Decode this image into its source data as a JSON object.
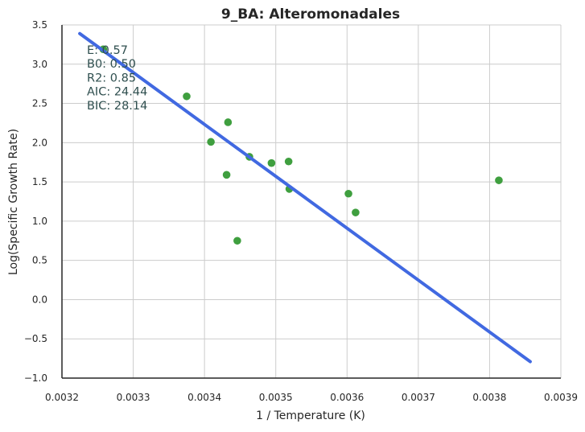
{
  "chart_data": {
    "type": "scatter",
    "title": "9_BA: Alteromonadales",
    "xlabel": "1 / Temperature (K)",
    "ylabel": "Log(Specific Growth Rate)",
    "xlim": [
      0.0032,
      0.0039
    ],
    "ylim": [
      -1.0,
      3.5
    ],
    "x_ticks": [
      "0.0032",
      "0.0033",
      "0.0034",
      "0.0035",
      "0.0036",
      "0.0037",
      "0.0038",
      "0.0039"
    ],
    "y_ticks": [
      "3.5",
      "3.0",
      "2.5",
      "2.0",
      "1.5",
      "1.0",
      "0.5",
      "0.0",
      "−0.5",
      "−1.0"
    ],
    "grid": true,
    "series": [
      {
        "kind": "points",
        "color": "#3f9f3f",
        "points": [
          [
            0.003258,
            3.19
          ],
          [
            0.003375,
            2.59
          ],
          [
            0.003409,
            2.01
          ],
          [
            0.003431,
            1.59
          ],
          [
            0.003433,
            2.26
          ],
          [
            0.003446,
            0.75
          ],
          [
            0.003463,
            1.82
          ],
          [
            0.003494,
            1.74
          ],
          [
            0.003518,
            1.76
          ],
          [
            0.003519,
            1.41
          ],
          [
            0.003602,
            1.35
          ],
          [
            0.003612,
            1.11
          ],
          [
            0.003813,
            1.52
          ]
        ]
      },
      {
        "kind": "fit-line",
        "color": "#4169e1",
        "points": [
          [
            0.003225,
            3.39
          ],
          [
            0.003857,
            -0.79
          ]
        ]
      }
    ],
    "annotations": [
      "E:  0.57",
      "B0:  0.50",
      "R2:  0.85",
      "AIC: 24.44",
      "BIC: 28.14"
    ]
  }
}
